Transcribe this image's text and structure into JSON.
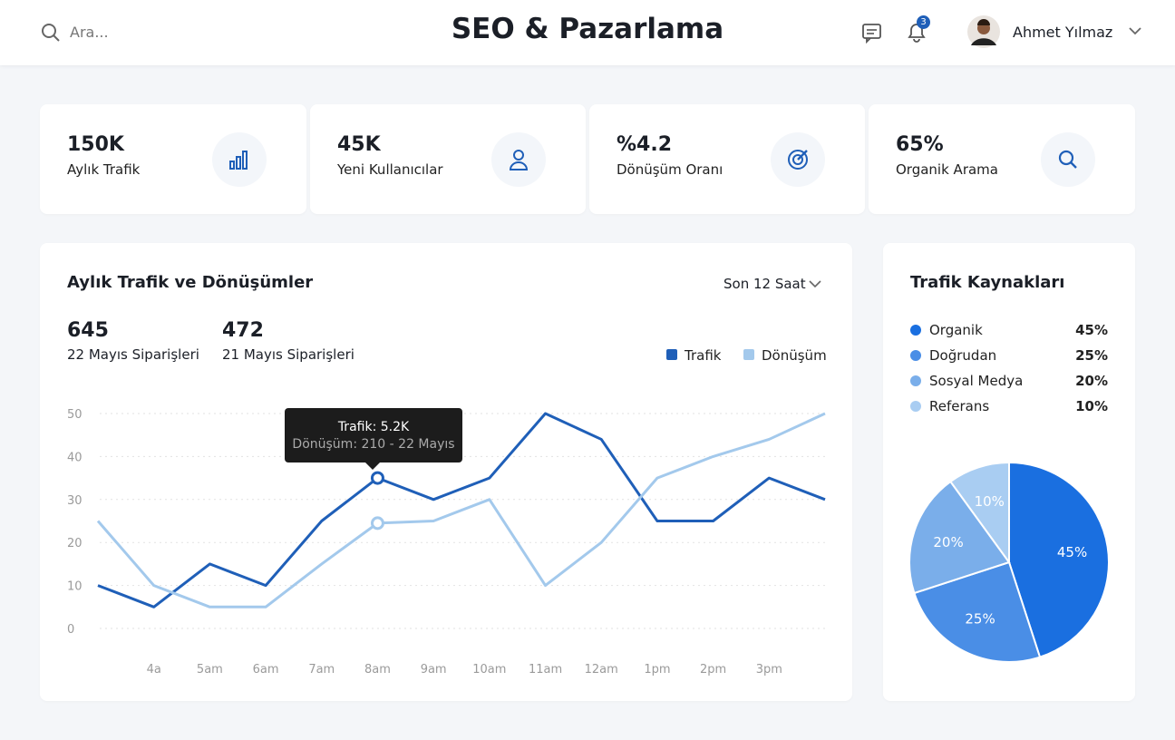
{
  "header": {
    "search_placeholder": "Ara...",
    "title": "SEO & Pazarlama",
    "notification_count": "3",
    "user_name": "Ahmet Yılmaz"
  },
  "kpis": [
    {
      "value": "150K",
      "label": "Aylık Trafik"
    },
    {
      "value": "45K",
      "label": "Yeni Kullanıcılar"
    },
    {
      "value": "%4.2",
      "label": "Dönüşüm Oranı"
    },
    {
      "value": "65%",
      "label": "Organik Arama"
    }
  ],
  "chart_data": [
    {
      "type": "line",
      "title": "Aylık Trafik ve Dönüşümler",
      "range_selector": "Son 12 Saat",
      "stats": [
        {
          "value": "645",
          "label": "22 Mayıs Siparişleri"
        },
        {
          "value": "472",
          "label": "21 Mayıs Siparişleri"
        }
      ],
      "categories": [
        null,
        "4a",
        "5am",
        "6am",
        "7am",
        "8am",
        "9am",
        "10am",
        "11am",
        "12am",
        "1pm",
        "2pm",
        "3pm",
        null
      ],
      "series": [
        {
          "name": "Trafik",
          "color": "#1f5fb8",
          "values": [
            10,
            5,
            15,
            10,
            25,
            35,
            30,
            35,
            50,
            44,
            25,
            25,
            35,
            30
          ]
        },
        {
          "name": "Dönüşüm",
          "color": "#a3c9ec",
          "values": [
            25,
            10,
            5,
            5,
            15,
            24.5,
            25,
            30,
            10,
            20,
            35,
            40,
            44,
            50
          ]
        }
      ],
      "ylim": [
        0,
        50
      ],
      "yticks": [
        0,
        10,
        20,
        30,
        40,
        50
      ],
      "grid": true,
      "tooltip": [
        "Trafik: 5.2K",
        "Dönüşüm: 210 - 22 Mayıs"
      ]
    },
    {
      "type": "pie",
      "title": "Trafik Kaynakları",
      "categories": [
        "Organik",
        "Doğrudan",
        "Sosyal Medya",
        "Referans"
      ],
      "values": [
        45,
        25,
        20,
        10
      ],
      "value_labels": [
        "45%",
        "25%",
        "20%",
        "10%"
      ],
      "colors": [
        "#1a6fe0",
        "#4a8ee6",
        "#7aaeea",
        "#a9cdf2"
      ]
    }
  ]
}
